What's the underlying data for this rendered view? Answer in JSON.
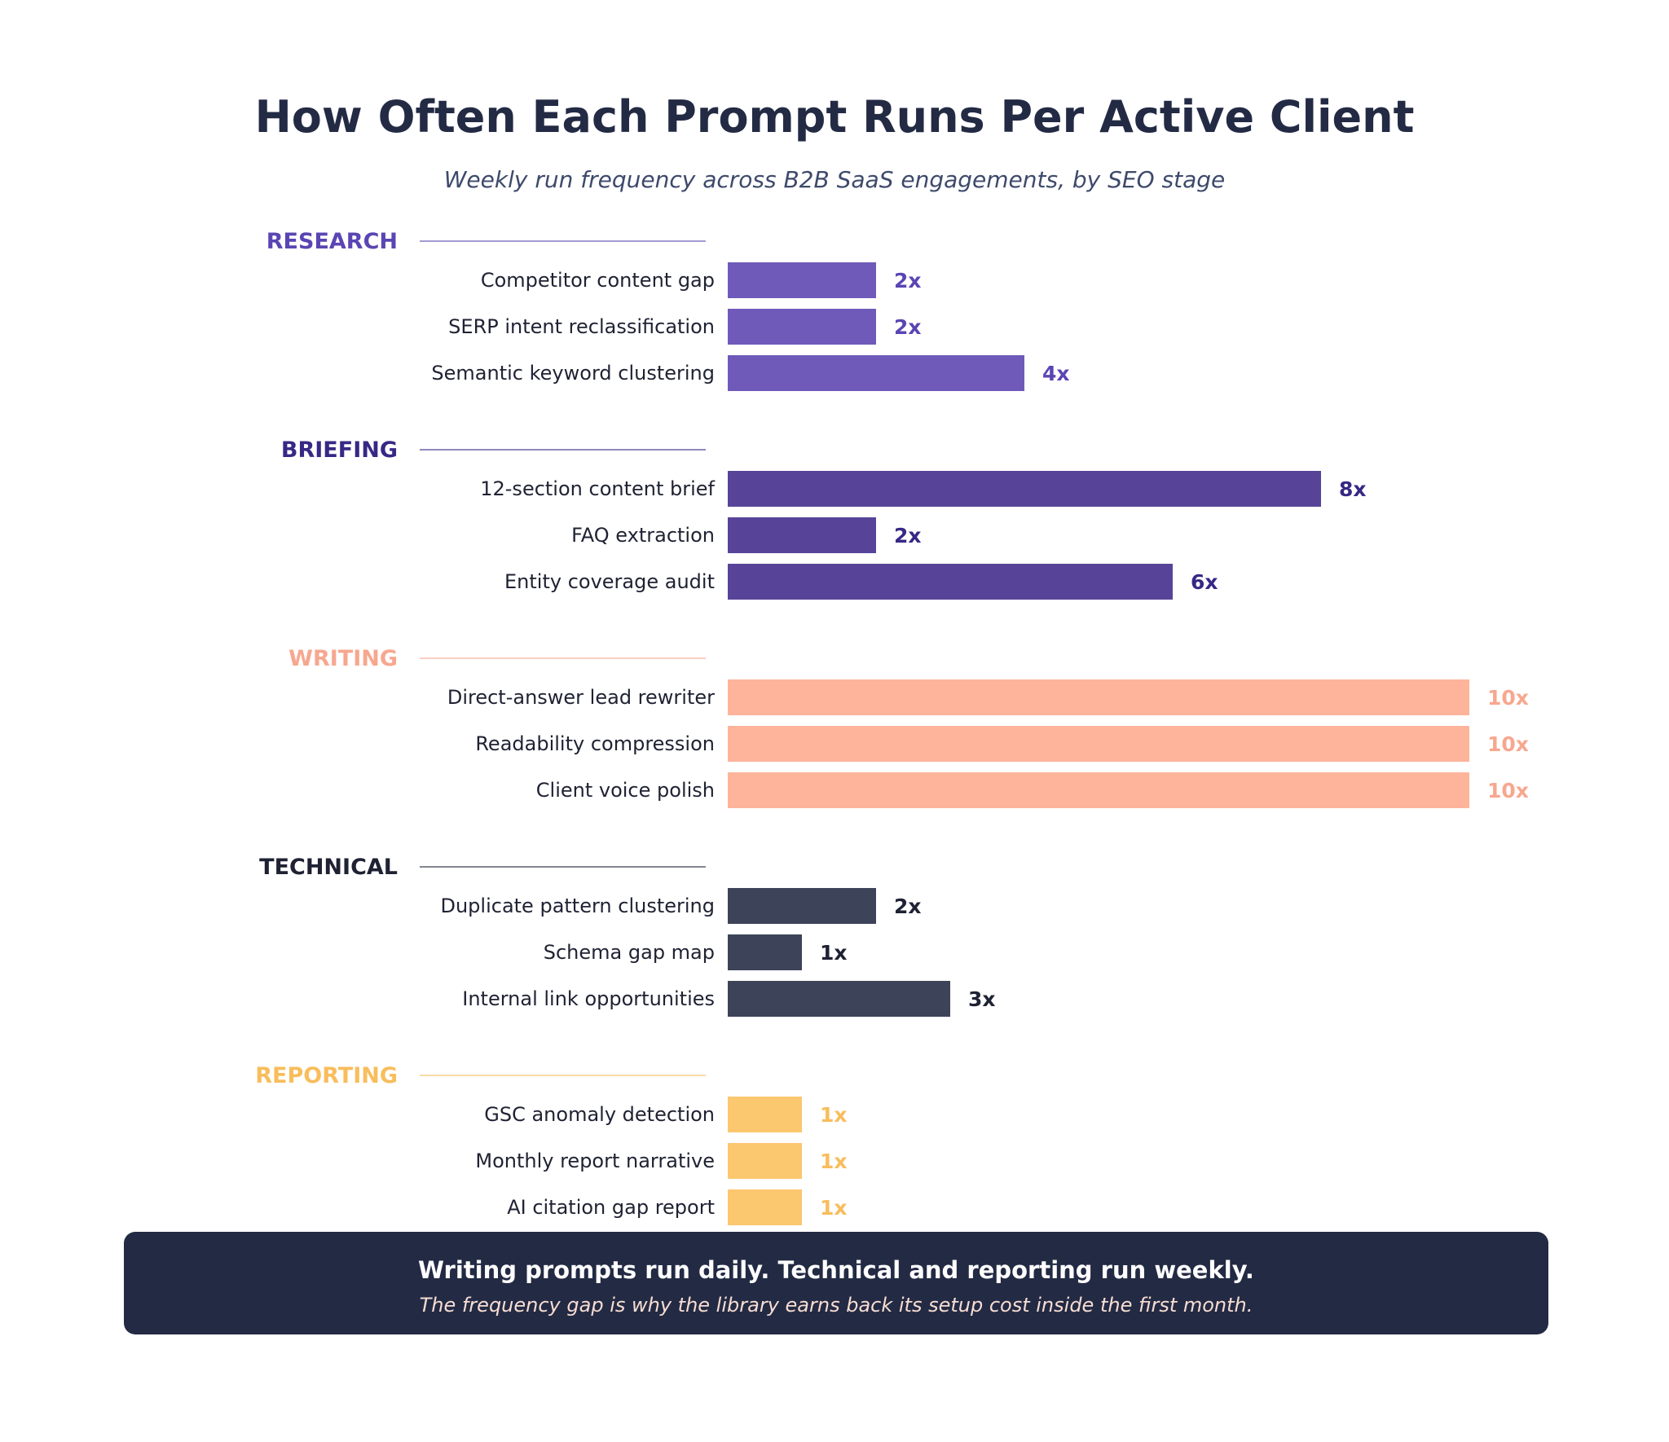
{
  "colors": {
    "research": "#6f5aba",
    "research_label": "#5b45b3",
    "briefing": "#574499",
    "briefing_label": "#372886",
    "writing": "#fdb49b",
    "writing_label": "#f7a78f",
    "technical": "#3d4459",
    "technical_label": "#1f2233",
    "reporting": "#fbc76f",
    "reporting_label": "#f8bd5c",
    "callout_bg": "#232a44"
  },
  "callout": {
    "headline": "Writing prompts run daily. Technical and reporting run weekly.",
    "sub": "The frequency gap is why the library earns back its setup cost inside the first month."
  },
  "chart_data": {
    "type": "bar",
    "orientation": "horizontal",
    "title": "How Often Each Prompt Runs Per Active Client",
    "subtitle": "Weekly run frequency across B2B SaaS engagements, by SEO stage",
    "xlim": [
      0,
      10
    ],
    "grid": false,
    "groups": [
      {
        "name": "RESEARCH",
        "key": "research",
        "items": [
          {
            "label": "Competitor content gap",
            "value": 2,
            "value_label": "2x"
          },
          {
            "label": "SERP intent reclassification",
            "value": 2,
            "value_label": "2x"
          },
          {
            "label": "Semantic keyword clustering",
            "value": 4,
            "value_label": "4x"
          }
        ]
      },
      {
        "name": "BRIEFING",
        "key": "briefing",
        "items": [
          {
            "label": "12-section content brief",
            "value": 8,
            "value_label": "8x"
          },
          {
            "label": "FAQ extraction",
            "value": 2,
            "value_label": "2x"
          },
          {
            "label": "Entity coverage audit",
            "value": 6,
            "value_label": "6x"
          }
        ]
      },
      {
        "name": "WRITING",
        "key": "writing",
        "items": [
          {
            "label": "Direct-answer lead rewriter",
            "value": 10,
            "value_label": "10x"
          },
          {
            "label": "Readability compression",
            "value": 10,
            "value_label": "10x"
          },
          {
            "label": "Client voice polish",
            "value": 10,
            "value_label": "10x"
          }
        ]
      },
      {
        "name": "TECHNICAL",
        "key": "technical",
        "items": [
          {
            "label": "Duplicate pattern clustering",
            "value": 2,
            "value_label": "2x"
          },
          {
            "label": "Schema gap map",
            "value": 1,
            "value_label": "1x"
          },
          {
            "label": "Internal link opportunities",
            "value": 3,
            "value_label": "3x"
          }
        ]
      },
      {
        "name": "REPORTING",
        "key": "reporting",
        "items": [
          {
            "label": "GSC anomaly detection",
            "value": 1,
            "value_label": "1x"
          },
          {
            "label": "Monthly report narrative",
            "value": 1,
            "value_label": "1x"
          },
          {
            "label": "AI citation gap report",
            "value": 1,
            "value_label": "1x"
          }
        ]
      }
    ]
  }
}
